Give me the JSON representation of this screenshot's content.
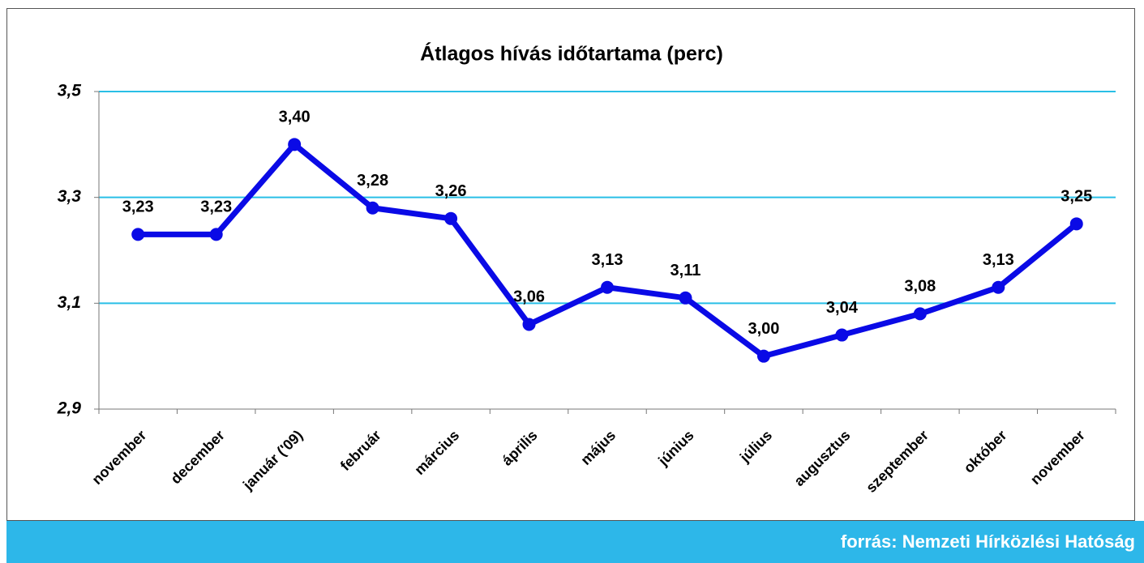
{
  "chart_data": {
    "type": "line",
    "title": "Átlagos hívás időtartama (perc)",
    "categories": [
      "november",
      "december",
      "január ('09)",
      "február",
      "március",
      "április",
      "május",
      "június",
      "július",
      "augusztus",
      "szeptember",
      "október",
      "november"
    ],
    "series": [
      {
        "name": "Átlagos hívás időtartama",
        "color": "#0a0ae6",
        "values": [
          3.23,
          3.23,
          3.4,
          3.28,
          3.26,
          3.06,
          3.13,
          3.11,
          3.0,
          3.04,
          3.08,
          3.13,
          3.25
        ],
        "value_labels": [
          "3,23",
          "3,23",
          "3,40",
          "3,28",
          "3,26",
          "3,06",
          "3,13",
          "3,11",
          "3,00",
          "3,04",
          "3,08",
          "3,13",
          "3,25"
        ]
      }
    ],
    "ylim": [
      2.9,
      3.5
    ],
    "yticks": [
      {
        "value": 2.9,
        "label": "2,9"
      },
      {
        "value": 3.1,
        "label": "3,1"
      },
      {
        "value": 3.3,
        "label": "3,3"
      },
      {
        "value": 3.5,
        "label": "3,5"
      }
    ],
    "grid": true,
    "grid_color": "#29bfe6",
    "source": "forrás: Nemzeti Hírközlési Hatóság"
  }
}
